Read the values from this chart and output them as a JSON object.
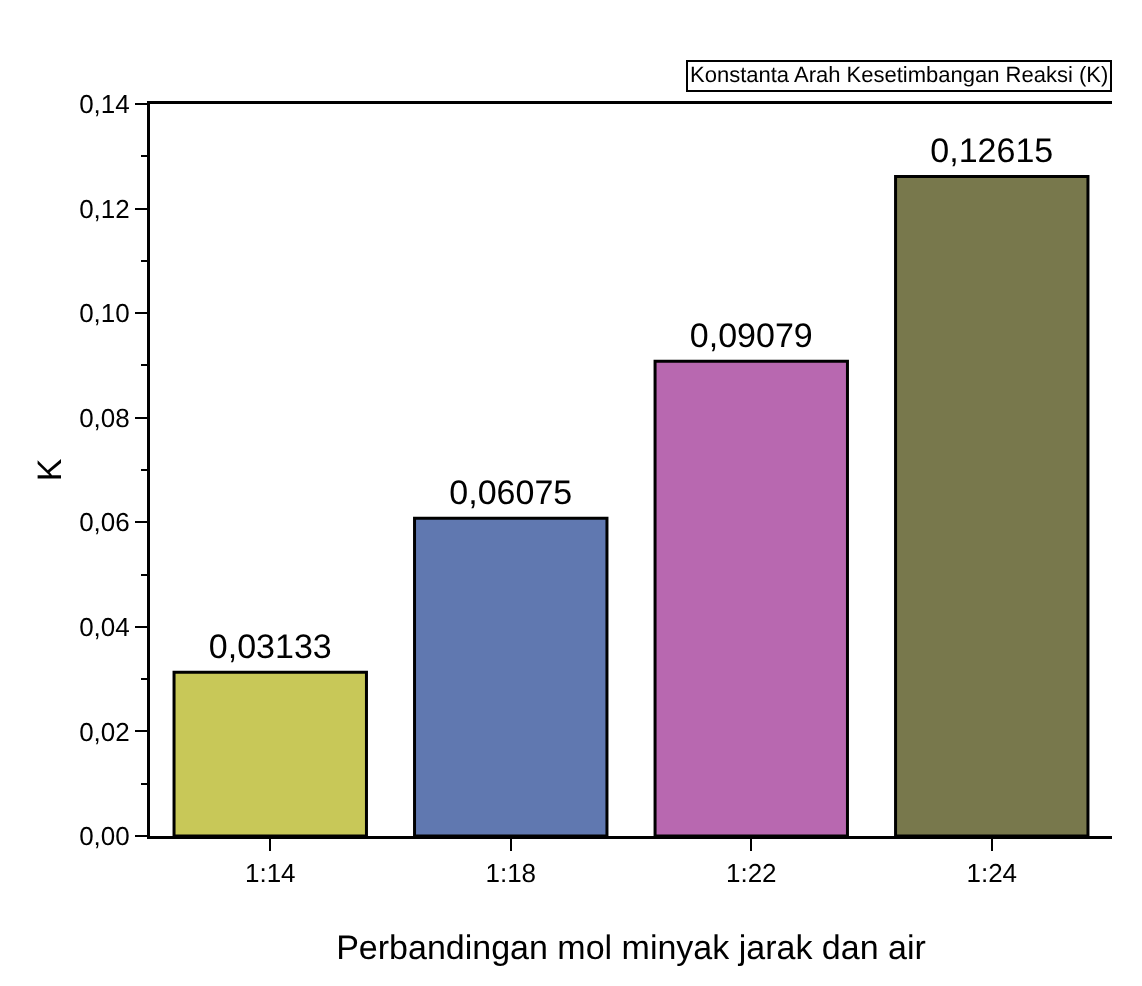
{
  "chart_data": {
    "type": "bar",
    "xlabel": "Perbandingan mol minyak jarak dan air",
    "ylabel": "K",
    "annotations": [
      "Konstanta Arah Kesetimbangan Reaksi (K)"
    ],
    "categories": [
      "1:14",
      "1:18",
      "1:22",
      "1:24"
    ],
    "values": [
      0.03133,
      0.06075,
      0.09079,
      0.12615
    ],
    "value_labels": [
      "0,03133",
      "0,06075",
      "0,09079",
      "0,12615"
    ],
    "colors": [
      "#c8c858",
      "#6078b0",
      "#b868b0",
      "#78784c"
    ],
    "ylim": [
      0,
      0.14
    ],
    "yticks": [
      {
        "value": 0,
        "label": "0,00"
      },
      {
        "value": 0.02,
        "label": "0,02"
      },
      {
        "value": 0.04,
        "label": "0,04"
      },
      {
        "value": 0.06,
        "label": "0,06"
      },
      {
        "value": 0.08,
        "label": "0,08"
      },
      {
        "value": 0.1,
        "label": "0,10"
      },
      {
        "value": 0.12,
        "label": "0,12"
      },
      {
        "value": 0.14,
        "label": "0,14"
      }
    ],
    "grid": false
  }
}
